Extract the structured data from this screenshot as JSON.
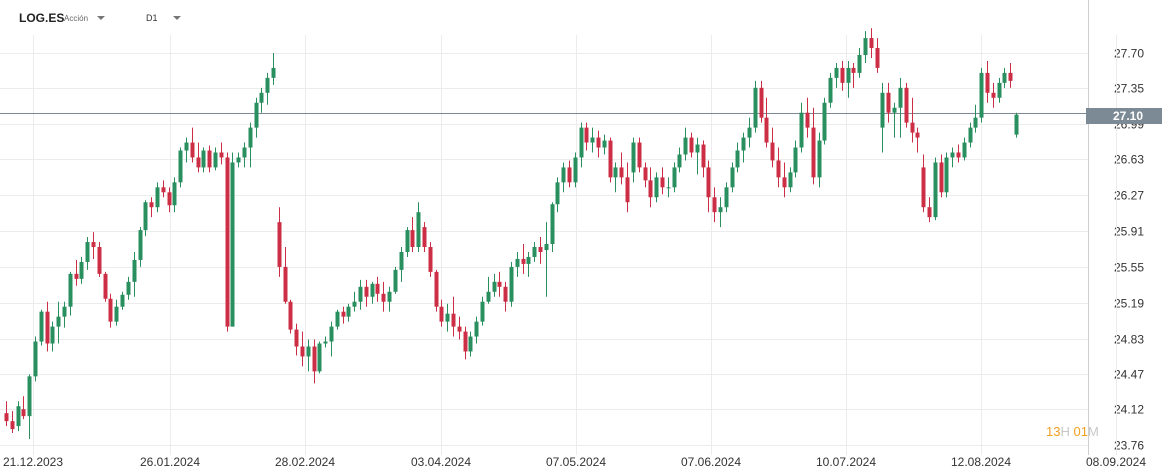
{
  "header": {
    "symbol": "LOG.ES",
    "asset_type": "Acción",
    "timeframe": "D1"
  },
  "price_tag": "27.10",
  "timer": {
    "hours": "13",
    "hours_unit": "H",
    "minutes": "01",
    "minutes_unit": "M"
  },
  "colors": {
    "up": "#2a8f5f",
    "down": "#cc2f45",
    "grid": "#ececec",
    "price_line": "#7c8a96",
    "axis": "#cfcfcf"
  },
  "chart_data": {
    "type": "candlestick",
    "title": "",
    "xlabel": "",
    "ylabel": "",
    "ylim": [
      23.68,
      28.14
    ],
    "grid": true,
    "current_price": 27.1,
    "y_ticks": [
      "27.70",
      "27.35",
      "26.99",
      "26.63",
      "26.27",
      "25.91",
      "25.55",
      "25.19",
      "24.83",
      "24.47",
      "24.12",
      "23.76"
    ],
    "x_ticks": [
      "21.12.2023",
      "26.01.2024",
      "28.02.2024",
      "03.04.2024",
      "07.05.2024",
      "07.06.2024",
      "10.07.2024",
      "12.08.2024",
      "08.09.2024"
    ],
    "ohlc": [
      [
        24.08,
        24.2,
        23.95,
        24.0
      ],
      [
        24.0,
        24.1,
        23.88,
        23.92
      ],
      [
        23.95,
        24.2,
        23.9,
        24.15
      ],
      [
        24.12,
        24.25,
        24.02,
        24.05
      ],
      [
        24.05,
        24.47,
        23.82,
        24.45
      ],
      [
        24.45,
        24.85,
        24.4,
        24.8
      ],
      [
        24.8,
        25.12,
        24.76,
        25.1
      ],
      [
        25.1,
        25.2,
        24.7,
        24.78
      ],
      [
        24.78,
        25.0,
        24.7,
        24.95
      ],
      [
        24.95,
        25.2,
        24.78,
        25.05
      ],
      [
        25.05,
        25.2,
        24.94,
        25.15
      ],
      [
        25.15,
        25.5,
        25.06,
        25.48
      ],
      [
        25.48,
        25.62,
        25.36,
        25.43
      ],
      [
        25.43,
        25.65,
        25.38,
        25.6
      ],
      [
        25.6,
        25.85,
        25.52,
        25.8
      ],
      [
        25.8,
        25.9,
        25.63,
        25.75
      ],
      [
        25.75,
        25.8,
        25.45,
        25.48
      ],
      [
        25.48,
        25.5,
        25.2,
        25.23
      ],
      [
        25.23,
        25.28,
        24.94,
        25.0
      ],
      [
        25.0,
        25.22,
        24.96,
        25.15
      ],
      [
        25.15,
        25.3,
        25.12,
        25.27
      ],
      [
        25.27,
        25.45,
        25.22,
        25.4
      ],
      [
        25.4,
        25.7,
        25.25,
        25.62
      ],
      [
        25.62,
        25.95,
        25.55,
        25.92
      ],
      [
        25.92,
        26.22,
        25.86,
        26.2
      ],
      [
        26.2,
        26.25,
        26.05,
        26.15
      ],
      [
        26.15,
        26.4,
        26.1,
        26.35
      ],
      [
        26.35,
        26.42,
        26.25,
        26.3
      ],
      [
        26.3,
        26.35,
        26.1,
        26.17
      ],
      [
        26.17,
        26.45,
        26.1,
        26.4
      ],
      [
        26.4,
        26.75,
        26.35,
        26.72
      ],
      [
        26.72,
        26.85,
        26.6,
        26.8
      ],
      [
        26.8,
        26.95,
        26.6,
        26.65
      ],
      [
        26.65,
        26.8,
        26.5,
        26.55
      ],
      [
        26.55,
        26.75,
        26.5,
        26.72
      ],
      [
        26.72,
        26.77,
        26.5,
        26.55
      ],
      [
        26.55,
        26.75,
        26.52,
        26.7
      ],
      [
        26.7,
        26.8,
        26.58,
        26.65
      ],
      [
        26.65,
        26.7,
        24.9,
        24.95
      ],
      [
        24.95,
        26.7,
        24.95,
        26.6
      ],
      [
        26.6,
        26.7,
        26.55,
        26.65
      ],
      [
        26.65,
        26.8,
        26.55,
        26.75
      ],
      [
        26.75,
        27.0,
        26.55,
        26.95
      ],
      [
        26.95,
        27.25,
        26.85,
        27.2
      ],
      [
        27.2,
        27.35,
        27.1,
        27.3
      ],
      [
        27.3,
        27.5,
        27.18,
        27.45
      ],
      [
        27.45,
        27.7,
        27.38,
        27.55
      ],
      [
        26.0,
        26.15,
        25.45,
        25.55
      ],
      [
        25.55,
        25.75,
        25.18,
        25.2
      ],
      [
        25.2,
        25.22,
        24.88,
        24.92
      ],
      [
        24.92,
        24.98,
        24.66,
        24.75
      ],
      [
        24.75,
        24.9,
        24.55,
        24.65
      ],
      [
        24.65,
        24.82,
        24.5,
        24.75
      ],
      [
        24.75,
        24.82,
        24.38,
        24.5
      ],
      [
        24.5,
        24.8,
        24.48,
        24.78
      ],
      [
        24.78,
        24.85,
        24.74,
        24.8
      ],
      [
        24.8,
        25.0,
        24.65,
        24.95
      ],
      [
        24.95,
        25.12,
        24.92,
        25.1
      ],
      [
        25.1,
        25.15,
        24.98,
        25.05
      ],
      [
        25.05,
        25.18,
        25.0,
        25.15
      ],
      [
        25.15,
        25.3,
        25.1,
        25.2
      ],
      [
        25.2,
        25.42,
        25.12,
        25.35
      ],
      [
        25.35,
        25.42,
        25.15,
        25.25
      ],
      [
        25.25,
        25.4,
        25.18,
        25.38
      ],
      [
        25.38,
        25.45,
        25.2,
        25.28
      ],
      [
        25.28,
        25.4,
        25.1,
        25.2
      ],
      [
        25.2,
        25.35,
        25.1,
        25.3
      ],
      [
        25.3,
        25.55,
        25.28,
        25.52
      ],
      [
        25.52,
        25.75,
        25.4,
        25.7
      ],
      [
        25.7,
        25.95,
        25.65,
        25.92
      ],
      [
        25.92,
        26.05,
        25.7,
        25.75
      ],
      [
        25.75,
        26.2,
        25.7,
        26.1
      ],
      [
        25.95,
        26.0,
        25.7,
        25.75
      ],
      [
        25.75,
        25.8,
        25.45,
        25.5
      ],
      [
        25.5,
        25.52,
        25.1,
        25.15
      ],
      [
        25.15,
        25.22,
        24.95,
        25.0
      ],
      [
        25.0,
        25.18,
        24.9,
        25.08
      ],
      [
        25.08,
        25.25,
        24.85,
        24.95
      ],
      [
        24.95,
        25.05,
        24.82,
        24.9
      ],
      [
        24.9,
        24.95,
        24.62,
        24.7
      ],
      [
        24.7,
        24.9,
        24.65,
        24.85
      ],
      [
        24.85,
        25.05,
        24.78,
        25.0
      ],
      [
        25.0,
        25.25,
        24.96,
        25.2
      ],
      [
        25.2,
        25.45,
        25.18,
        25.3
      ],
      [
        25.3,
        25.48,
        25.25,
        25.4
      ],
      [
        25.4,
        25.5,
        25.25,
        25.35
      ],
      [
        25.35,
        25.4,
        25.1,
        25.2
      ],
      [
        25.2,
        25.6,
        25.15,
        25.55
      ],
      [
        25.55,
        25.7,
        25.45,
        25.63
      ],
      [
        25.63,
        25.78,
        25.48,
        25.58
      ],
      [
        25.58,
        25.7,
        25.45,
        25.65
      ],
      [
        25.65,
        25.8,
        25.6,
        25.75
      ],
      [
        25.75,
        25.85,
        25.58,
        25.7
      ],
      [
        25.72,
        26.0,
        25.25,
        25.78
      ],
      [
        25.78,
        26.2,
        25.7,
        26.18
      ],
      [
        26.18,
        26.45,
        26.1,
        26.4
      ],
      [
        26.4,
        26.6,
        26.3,
        26.55
      ],
      [
        26.55,
        26.62,
        26.35,
        26.4
      ],
      [
        26.4,
        26.7,
        26.35,
        26.65
      ],
      [
        26.65,
        27.0,
        26.55,
        26.95
      ],
      [
        26.95,
        27.0,
        26.72,
        26.8
      ],
      [
        26.8,
        26.95,
        26.7,
        26.85
      ],
      [
        26.85,
        26.92,
        26.65,
        26.75
      ],
      [
        26.75,
        26.88,
        26.68,
        26.82
      ],
      [
        26.82,
        26.85,
        26.4,
        26.45
      ],
      [
        26.45,
        26.6,
        26.3,
        26.55
      ],
      [
        26.55,
        26.7,
        26.38,
        26.45
      ],
      [
        26.45,
        26.6,
        26.1,
        26.2
      ],
      [
        26.5,
        26.85,
        26.4,
        26.8
      ],
      [
        26.8,
        26.85,
        26.5,
        26.55
      ],
      [
        26.55,
        26.6,
        26.35,
        26.42
      ],
      [
        26.42,
        26.55,
        26.15,
        26.25
      ],
      [
        26.25,
        26.5,
        26.2,
        26.45
      ],
      [
        26.45,
        26.55,
        26.28,
        26.35
      ],
      [
        26.35,
        26.45,
        26.25,
        26.35
      ],
      [
        26.35,
        26.6,
        26.3,
        26.55
      ],
      [
        26.55,
        26.75,
        26.5,
        26.68
      ],
      [
        26.68,
        26.95,
        26.62,
        26.85
      ],
      [
        26.85,
        26.9,
        26.65,
        26.7
      ],
      [
        26.7,
        26.85,
        26.48,
        26.78
      ],
      [
        26.78,
        26.82,
        26.45,
        26.55
      ],
      [
        26.55,
        26.62,
        26.1,
        26.25
      ],
      [
        26.25,
        26.35,
        26.0,
        26.1
      ],
      [
        26.1,
        26.25,
        25.95,
        26.15
      ],
      [
        26.15,
        26.4,
        26.1,
        26.35
      ],
      [
        26.35,
        26.6,
        26.3,
        26.55
      ],
      [
        26.55,
        26.8,
        26.5,
        26.72
      ],
      [
        26.72,
        26.9,
        26.6,
        26.85
      ],
      [
        26.85,
        27.05,
        26.75,
        26.95
      ],
      [
        26.95,
        27.42,
        26.9,
        27.35
      ],
      [
        27.35,
        27.42,
        27.0,
        27.05
      ],
      [
        27.05,
        27.25,
        26.75,
        26.8
      ],
      [
        26.8,
        26.95,
        26.55,
        26.62
      ],
      [
        26.62,
        26.75,
        26.35,
        26.45
      ],
      [
        26.45,
        26.6,
        26.25,
        26.35
      ],
      [
        26.35,
        26.55,
        26.3,
        26.5
      ],
      [
        26.5,
        26.82,
        26.45,
        26.75
      ],
      [
        26.75,
        27.2,
        26.7,
        27.1
      ],
      [
        27.1,
        27.25,
        26.85,
        26.95
      ],
      [
        26.95,
        27.15,
        26.38,
        26.45
      ],
      [
        26.45,
        26.9,
        26.35,
        26.82
      ],
      [
        26.82,
        27.25,
        26.78,
        27.2
      ],
      [
        27.2,
        27.5,
        27.15,
        27.45
      ],
      [
        27.45,
        27.6,
        27.35,
        27.55
      ],
      [
        27.55,
        27.62,
        27.32,
        27.4
      ],
      [
        27.4,
        27.62,
        27.25,
        27.55
      ],
      [
        27.55,
        27.6,
        27.35,
        27.5
      ],
      [
        27.5,
        27.75,
        27.45,
        27.68
      ],
      [
        27.68,
        27.92,
        27.6,
        27.85
      ],
      [
        27.85,
        27.95,
        27.65,
        27.75
      ],
      [
        27.75,
        27.85,
        27.5,
        27.55
      ],
      [
        26.95,
        27.4,
        26.7,
        27.3
      ],
      [
        27.3,
        27.4,
        27.0,
        27.1
      ],
      [
        27.1,
        27.2,
        26.85,
        27.15
      ],
      [
        27.15,
        27.45,
        26.85,
        27.35
      ],
      [
        27.35,
        27.4,
        26.95,
        27.0
      ],
      [
        27.0,
        27.25,
        26.8,
        26.9
      ],
      [
        26.9,
        26.95,
        26.7,
        26.85
      ],
      [
        26.55,
        26.68,
        26.1,
        26.15
      ],
      [
        26.15,
        26.25,
        26.0,
        26.05
      ],
      [
        26.05,
        26.65,
        26.02,
        26.6
      ],
      [
        26.6,
        26.68,
        26.25,
        26.3
      ],
      [
        26.3,
        26.7,
        26.25,
        26.65
      ],
      [
        26.65,
        26.75,
        26.55,
        26.7
      ],
      [
        26.7,
        26.78,
        26.6,
        26.65
      ],
      [
        26.65,
        26.85,
        26.62,
        26.8
      ],
      [
        26.8,
        27.0,
        26.75,
        26.95
      ],
      [
        26.95,
        27.18,
        26.9,
        27.05
      ],
      [
        27.05,
        27.55,
        27.0,
        27.5
      ],
      [
        27.5,
        27.62,
        27.2,
        27.3
      ],
      [
        27.3,
        27.4,
        27.15,
        27.25
      ],
      [
        27.25,
        27.45,
        27.2,
        27.4
      ],
      [
        27.4,
        27.55,
        27.35,
        27.5
      ],
      [
        27.5,
        27.6,
        27.35,
        27.42
      ],
      [
        26.88,
        27.1,
        26.85,
        27.08
      ]
    ]
  }
}
